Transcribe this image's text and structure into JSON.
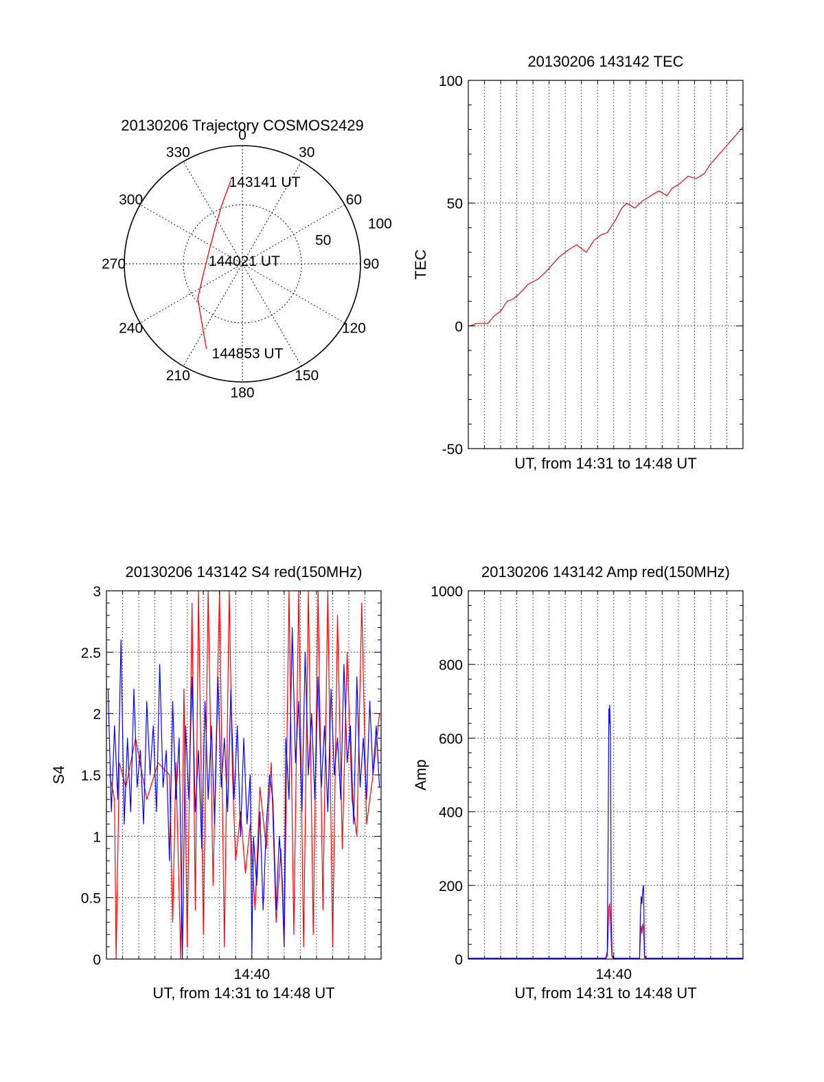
{
  "chart_data": [
    {
      "panel": "trajectory",
      "type": "polar",
      "title": "20130206 Trajectory COSMOS2429",
      "angle_labels": [
        "0",
        "30",
        "60",
        "90",
        "120",
        "150",
        "180",
        "210",
        "240",
        "270",
        "300",
        "330"
      ],
      "radial_labels": [
        "50",
        "100"
      ],
      "radial_values": [
        50,
        100
      ],
      "series": [
        {
          "color": "#ff0000",
          "points": [
            {
              "az": 352,
              "r": 71
            },
            {
              "az": 340,
              "r": 52
            },
            {
              "az": 318,
              "r": 36
            },
            {
              "az": 285,
              "r": 30
            },
            {
              "az": 256,
              "r": 34
            },
            {
              "az": 232,
              "r": 48
            },
            {
              "az": 203,
              "r": 78
            }
          ]
        }
      ],
      "annotations": [
        {
          "text": "143141 UT",
          "az": 350,
          "r": 72
        },
        {
          "text": "144021 UT",
          "az": 278,
          "r": 30
        },
        {
          "text": "144853 UT",
          "az": 200,
          "r": 79
        }
      ]
    },
    {
      "panel": "tec",
      "type": "line",
      "title": "20130206 143142 TEC",
      "xlabel": "UT, from 14:31 to 14:48 UT",
      "ylabel": "TEC",
      "xlim": [
        0,
        17
      ],
      "ylim": [
        -50,
        100
      ],
      "yticks": [
        "-50",
        "0",
        "50",
        "100"
      ],
      "grid": true,
      "series": [
        {
          "color": "#ff0000",
          "x": [
            0.1,
            0.5,
            0.9,
            1.2,
            1.6,
            2.0,
            2.4,
            2.8,
            3.3,
            3.7,
            4.3,
            4.8,
            5.2,
            5.6,
            6.2,
            6.7,
            7.3,
            7.8,
            8.2,
            8.6,
            9.1,
            9.5,
            9.8,
            10.3,
            10.8,
            11.3,
            11.8,
            12.3,
            12.6,
            13.1,
            13.6,
            14.1,
            14.6,
            15.0,
            15.4,
            15.8,
            16.2,
            16.6,
            17.0
          ],
          "y": [
            0,
            1,
            1,
            1,
            4,
            6,
            10,
            11,
            14,
            17,
            19,
            22,
            25,
            28,
            31,
            33,
            30,
            35,
            37,
            38,
            43,
            48,
            50,
            48,
            51,
            53,
            55,
            53,
            56,
            58,
            61,
            60,
            62,
            66,
            69,
            72,
            75,
            78,
            81
          ]
        }
      ]
    },
    {
      "panel": "s4",
      "type": "line",
      "title": "20130206 143142 S4 red(150MHz)",
      "xlabel": "UT, from 14:31 to 14:48 UT",
      "ylabel": "S4",
      "xlim": [
        0,
        17
      ],
      "ylim": [
        0,
        3
      ],
      "yticks": [
        "0",
        "0.5",
        "1",
        "1.5",
        "2",
        "2.5",
        "3"
      ],
      "xticks": [
        {
          "value": 9,
          "label": "14:40"
        }
      ],
      "grid": true,
      "series": [
        {
          "color": "#ff0000",
          "x": [
            0.2,
            0.5,
            0.6,
            0.8,
            1.2,
            1.8,
            2.5,
            3.2,
            3.9,
            4.1,
            4.3,
            4.6,
            4.8,
            5.0,
            5.3,
            5.5,
            5.7,
            6.0,
            6.3,
            6.6,
            7.0,
            7.3,
            7.6,
            7.8,
            8.0,
            8.3,
            8.6,
            8.9,
            9.2,
            9.5,
            9.9,
            10.2,
            10.5,
            10.8,
            11.0,
            11.3,
            11.6,
            11.9,
            12.2,
            12.5,
            12.8,
            13.1,
            13.4,
            13.7,
            14.0,
            14.3,
            14.6,
            14.9,
            15.2,
            15.5,
            15.8,
            16.1,
            16.5,
            16.9
          ],
          "y": [
            1.5,
            1.3,
            0,
            1.6,
            1.4,
            1.8,
            1.3,
            1.6,
            1.5,
            0.3,
            1.6,
            0,
            2.2,
            0.1,
            2.9,
            0.4,
            3.0,
            0.2,
            3.0,
            0.6,
            3.0,
            0.1,
            3.0,
            1.5,
            0.8,
            1.2,
            0.7,
            1.1,
            0.4,
            1.4,
            0.9,
            1.6,
            0.3,
            0.9,
            0.1,
            3.0,
            0.2,
            3.0,
            0.1,
            3.0,
            0.2,
            3.0,
            0.4,
            3.0,
            0.1,
            2.8,
            0.9,
            2.5,
            1.3,
            1.0,
            2.9,
            1.1,
            1.5,
            2.0
          ]
        },
        {
          "color": "#0000ff",
          "x": [
            0.1,
            0.3,
            0.5,
            0.7,
            0.9,
            1.1,
            1.3,
            1.5,
            1.7,
            1.9,
            2.1,
            2.3,
            2.5,
            2.7,
            2.9,
            3.1,
            3.3,
            3.5,
            3.7,
            3.9,
            4.1,
            4.3,
            4.5,
            4.7,
            4.9,
            5.1,
            5.3,
            5.5,
            5.7,
            5.9,
            6.1,
            6.3,
            6.5,
            6.7,
            6.9,
            7.1,
            7.3,
            7.5,
            7.7,
            7.9,
            8.1,
            8.3,
            8.5,
            8.7,
            8.9,
            9.0,
            9.1,
            9.3,
            9.5,
            9.7,
            9.9,
            10.1,
            10.3,
            10.5,
            10.7,
            10.9,
            11.0,
            11.1,
            11.3,
            11.5,
            11.7,
            11.9,
            12.1,
            12.3,
            12.5,
            12.7,
            12.9,
            13.1,
            13.3,
            13.5,
            13.7,
            13.9,
            14.1,
            14.3,
            14.5,
            14.7,
            14.9,
            15.1,
            15.3,
            15.5,
            15.7,
            15.9,
            16.1,
            16.3,
            16.5,
            16.7,
            16.9
          ],
          "y": [
            2.2,
            1.2,
            1.9,
            1.3,
            2.6,
            1.1,
            1.8,
            1.2,
            2.2,
            1.4,
            1.7,
            1.1,
            2.1,
            1.5,
            1.9,
            1.2,
            2.4,
            1.4,
            1.7,
            0.8,
            2.1,
            1.3,
            1.8,
            0,
            1.9,
            1.3,
            2.3,
            1.2,
            1.7,
            0.9,
            2.1,
            1.3,
            1.9,
            1.1,
            2.3,
            1.4,
            1.8,
            1.2,
            2.2,
            1.3,
            1.9,
            1.0,
            1.8,
            1.1,
            1.5,
            0.05,
            1.0,
            0.6,
            1.2,
            0.4,
            1.1,
            1.5,
            1.3,
            0.4,
            1.0,
            0.6,
            0.1,
            1.8,
            1.3,
            2.7,
            1.6,
            2.1,
            1.2,
            2.5,
            1.5,
            2.0,
            1.3,
            2.3,
            1.4,
            1.9,
            1.2,
            2.2,
            1.5,
            1.8,
            1.3,
            2.4,
            1.6,
            1.9,
            1.1,
            2.3,
            1.4,
            1.8,
            1.3,
            2.1,
            1.5,
            1.9,
            1.4
          ]
        }
      ]
    },
    {
      "panel": "amp",
      "type": "line",
      "title": "20130206 143142 Amp red(150MHz)",
      "xlabel": "UT, from 14:31 to 14:48 UT",
      "ylabel": "Amp",
      "xlim": [
        0,
        17
      ],
      "ylim": [
        0,
        1000
      ],
      "yticks": [
        "0",
        "200",
        "400",
        "600",
        "800",
        "1000"
      ],
      "xticks": [
        {
          "value": 9,
          "label": "14:40"
        }
      ],
      "grid": true,
      "series": [
        {
          "color": "#ff0000",
          "x": [
            0,
            8.5,
            8.6,
            8.65,
            8.7,
            8.75,
            8.8,
            8.85,
            8.9,
            9.0,
            10.6,
            10.65,
            10.7,
            10.75,
            10.8,
            10.85,
            10.9,
            11.0,
            17.0
          ],
          "y": [
            1,
            1,
            8,
            60,
            140,
            150,
            110,
            40,
            5,
            1,
            1,
            60,
            90,
            70,
            95,
            80,
            3,
            1,
            1
          ]
        },
        {
          "color": "#0000ff",
          "x": [
            0,
            8.5,
            8.6,
            8.65,
            8.7,
            8.72,
            8.75,
            8.8,
            8.85,
            8.9,
            9.0,
            10.6,
            10.65,
            10.7,
            10.75,
            10.8,
            10.85,
            10.9,
            11.0,
            17.0
          ],
          "y": [
            2,
            2,
            20,
            300,
            680,
            640,
            690,
            600,
            100,
            10,
            2,
            2,
            120,
            170,
            150,
            190,
            200,
            10,
            2,
            2
          ]
        }
      ]
    }
  ]
}
